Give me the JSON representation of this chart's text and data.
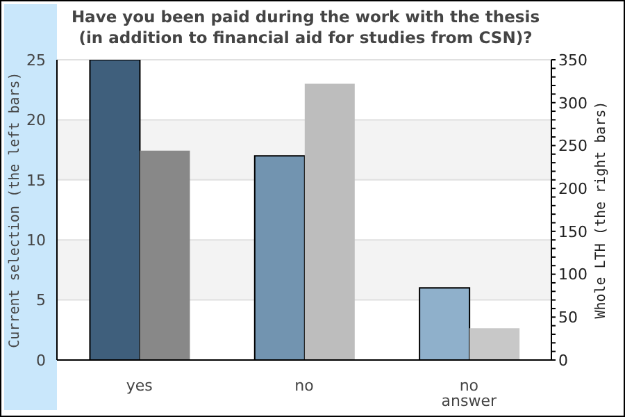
{
  "chart_data": {
    "type": "bar",
    "title": "Have you been paid during the work with the thesis\n(in addition to financial aid for studies from CSN)?",
    "ylabel": "Current selection (the left bars)",
    "y2label": "Whole LTH (the right bars)",
    "categories": [
      "yes",
      "no",
      "no answer"
    ],
    "series": [
      {
        "values": [
          25,
          17,
          6
        ],
        "colors": [
          "#3f5f7c",
          "#7294b0",
          "#8fb0cb"
        ]
      },
      {
        "axis": "y2",
        "values": [
          244,
          322,
          37
        ],
        "colors": [
          "#888888",
          "#bdbdbd",
          "#c8c8c8"
        ]
      }
    ],
    "ylim": [
      0,
      25
    ],
    "yticks": [
      0,
      5,
      10,
      15,
      20,
      25
    ],
    "y2lim": [
      0,
      350
    ],
    "y2ticks": [
      0,
      {
        "value": 10,
        "label": null
      },
      {
        "value": 20,
        "label": null
      },
      {
        "value": 30,
        "label": null
      },
      {
        "value": 40,
        "label": null
      },
      50,
      {
        "value": 60,
        "label": null
      },
      {
        "value": 70,
        "label": null
      },
      {
        "value": 80,
        "label": null
      },
      {
        "value": 90,
        "label": null
      },
      100,
      {
        "value": 110,
        "label": null
      },
      {
        "value": 120,
        "label": null
      },
      {
        "value": 130,
        "label": null
      },
      {
        "value": 140,
        "label": null
      },
      150,
      {
        "value": 160,
        "label": null
      },
      {
        "value": 170,
        "label": null
      },
      {
        "value": 180,
        "label": null
      },
      {
        "value": 190,
        "label": null
      },
      200,
      {
        "value": 210,
        "label": null
      },
      {
        "value": 220,
        "label": null
      },
      {
        "value": 230,
        "label": null
      },
      {
        "value": 240,
        "label": null
      },
      250,
      {
        "value": 260,
        "label": null
      },
      {
        "value": 270,
        "label": null
      },
      {
        "value": 280,
        "label": null
      },
      {
        "value": 290,
        "label": null
      },
      300,
      {
        "value": 310,
        "label": null
      },
      {
        "value": 320,
        "label": null
      },
      {
        "value": 330,
        "label": null
      },
      {
        "value": 340,
        "label": null
      },
      350
    ],
    "grid": "y",
    "legend": false
  }
}
